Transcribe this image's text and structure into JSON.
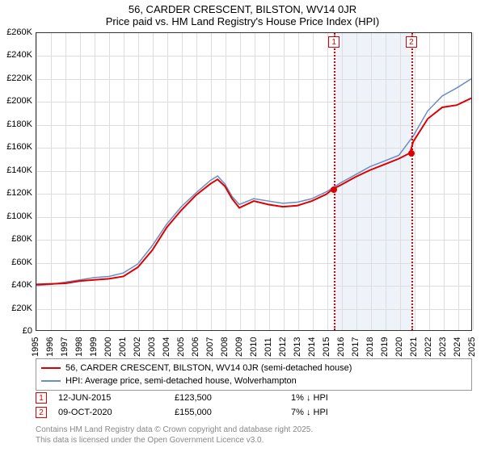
{
  "title": "56, CARDER CRESCENT, BILSTON, WV14 0JR",
  "subtitle": "Price paid vs. HM Land Registry's House Price Index (HPI)",
  "chart": {
    "type": "line",
    "background_color": "#ffffff",
    "grid_color": "#dddddd",
    "border_color": "#333333",
    "title_fontsize": 13,
    "label_fontsize": 11,
    "ylim": [
      0,
      260000
    ],
    "ytick_step": 20000,
    "yticks": [
      "£0",
      "£20K",
      "£40K",
      "£60K",
      "£80K",
      "£100K",
      "£120K",
      "£140K",
      "£160K",
      "£180K",
      "£200K",
      "£220K",
      "£240K",
      "£260K"
    ],
    "xlim": [
      1995,
      2025
    ],
    "xticks": [
      1995,
      1996,
      1997,
      1998,
      1999,
      2000,
      2001,
      2002,
      2003,
      2004,
      2005,
      2006,
      2007,
      2008,
      2009,
      2010,
      2011,
      2012,
      2013,
      2014,
      2015,
      2016,
      2017,
      2018,
      2019,
      2020,
      2021,
      2022,
      2023,
      2024,
      2025
    ],
    "shade_bands": [
      {
        "from": 2015.45,
        "to": 2020.77,
        "color": "#eef2f9"
      }
    ],
    "event_lines": [
      {
        "x": 2015.45,
        "label": "1",
        "color": "#dd0000"
      },
      {
        "x": 2020.77,
        "label": "2",
        "color": "#dd0000"
      }
    ],
    "series": [
      {
        "name": "56, CARDER CRESCENT, BILSTON, WV14 0JR (semi-detached house)",
        "color": "#dd0000",
        "line_width": 2,
        "data": [
          [
            1995,
            40000
          ],
          [
            1996,
            40500
          ],
          [
            1997,
            41000
          ],
          [
            1998,
            43000
          ],
          [
            1999,
            44000
          ],
          [
            2000,
            45000
          ],
          [
            2001,
            47000
          ],
          [
            2002,
            55000
          ],
          [
            2003,
            70000
          ],
          [
            2004,
            90000
          ],
          [
            2005,
            105000
          ],
          [
            2006,
            118000
          ],
          [
            2007,
            128000
          ],
          [
            2007.5,
            132000
          ],
          [
            2008,
            126000
          ],
          [
            2008.5,
            115000
          ],
          [
            2009,
            107000
          ],
          [
            2010,
            113000
          ],
          [
            2011,
            110000
          ],
          [
            2012,
            108000
          ],
          [
            2013,
            109000
          ],
          [
            2014,
            113000
          ],
          [
            2015,
            119000
          ],
          [
            2015.45,
            123500
          ],
          [
            2016,
            127000
          ],
          [
            2017,
            134000
          ],
          [
            2018,
            140000
          ],
          [
            2019,
            145000
          ],
          [
            2020,
            150000
          ],
          [
            2020.77,
            155000
          ],
          [
            2021,
            165000
          ],
          [
            2022,
            185000
          ],
          [
            2023,
            195000
          ],
          [
            2024,
            197000
          ],
          [
            2025,
            203000
          ]
        ],
        "markers": [
          {
            "x": 2015.45,
            "y": 123500
          },
          {
            "x": 2020.77,
            "y": 155000
          }
        ]
      },
      {
        "name": "HPI: Average price, semi-detached house, Wolverhampton",
        "color": "#6a8cc7",
        "line_width": 1.5,
        "data": [
          [
            1995,
            39000
          ],
          [
            1996,
            40000
          ],
          [
            1997,
            42000
          ],
          [
            1998,
            44000
          ],
          [
            1999,
            46000
          ],
          [
            2000,
            47000
          ],
          [
            2001,
            50000
          ],
          [
            2002,
            58000
          ],
          [
            2003,
            74000
          ],
          [
            2004,
            93000
          ],
          [
            2005,
            108000
          ],
          [
            2006,
            120000
          ],
          [
            2007,
            131000
          ],
          [
            2007.5,
            135000
          ],
          [
            2008,
            128000
          ],
          [
            2008.5,
            117000
          ],
          [
            2009,
            110000
          ],
          [
            2010,
            115000
          ],
          [
            2011,
            113000
          ],
          [
            2012,
            111000
          ],
          [
            2013,
            112000
          ],
          [
            2014,
            115000
          ],
          [
            2015,
            121000
          ],
          [
            2016,
            129000
          ],
          [
            2017,
            136000
          ],
          [
            2018,
            143000
          ],
          [
            2019,
            148000
          ],
          [
            2020,
            153000
          ],
          [
            2021,
            170000
          ],
          [
            2022,
            192000
          ],
          [
            2023,
            205000
          ],
          [
            2024,
            212000
          ],
          [
            2025,
            220000
          ]
        ]
      }
    ]
  },
  "legend": {
    "items": [
      {
        "color": "#dd0000",
        "label": "56, CARDER CRESCENT, BILSTON, WV14 0JR (semi-detached house)"
      },
      {
        "color": "#6a8cc7",
        "label": "HPI: Average price, semi-detached house, Wolverhampton"
      }
    ]
  },
  "transactions": [
    {
      "marker": "1",
      "date": "12-JUN-2015",
      "price": "£123,500",
      "delta": "1% ↓ HPI"
    },
    {
      "marker": "2",
      "date": "09-OCT-2020",
      "price": "£155,000",
      "delta": "7% ↓ HPI"
    }
  ],
  "credit1": "Contains HM Land Registry data © Crown copyright and database right 2025.",
  "credit2": "This data is licensed under the Open Government Licence v3.0."
}
